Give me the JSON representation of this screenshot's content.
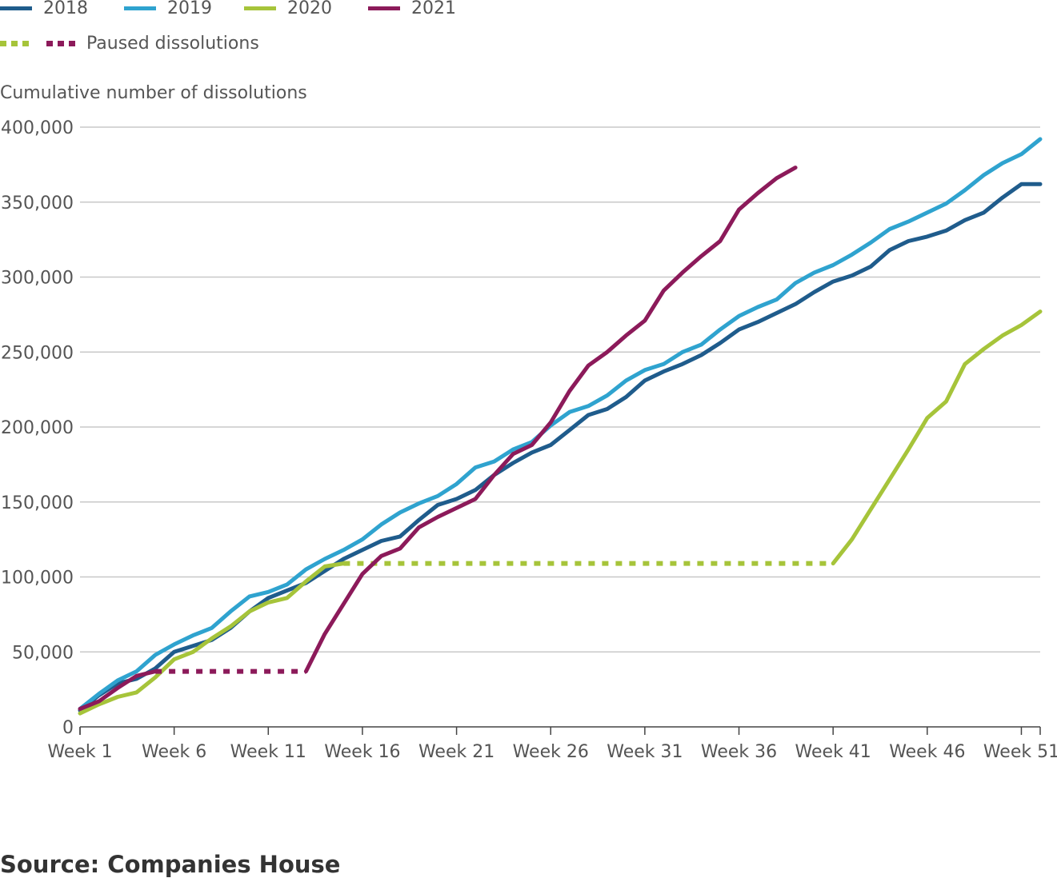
{
  "legend": {
    "series": [
      {
        "label": "2018",
        "color": "#1f5c8c"
      },
      {
        "label": "2019",
        "color": "#2fa3cf"
      },
      {
        "label": "2020",
        "color": "#a6c43a"
      },
      {
        "label": "2021",
        "color": "#8c1a5a"
      }
    ],
    "paused_label": "Paused dissolutions"
  },
  "source": "Source: Companies House",
  "chart_data": {
    "type": "line",
    "ylabel": "Cumulative number of dissolutions",
    "ylim": [
      0,
      400000
    ],
    "yticks": [
      0,
      50000,
      100000,
      150000,
      200000,
      250000,
      300000,
      350000,
      400000
    ],
    "ytick_labels": [
      "0",
      "50,000",
      "100,000",
      "150,000",
      "200,000",
      "250,000",
      "300,000",
      "350,000",
      "400,000"
    ],
    "xlim": [
      1,
      52
    ],
    "xticks": [
      1,
      6,
      11,
      16,
      21,
      26,
      31,
      36,
      41,
      46,
      51
    ],
    "xtick_labels": [
      "Week 1",
      "Week 6",
      "Week 11",
      "Week 16",
      "Week 21",
      "Week 26",
      "Week 31",
      "Week 36",
      "Week 41",
      "Week 46",
      "Week 51"
    ],
    "grid": "horizontal",
    "series": [
      {
        "name": "2018",
        "color": "#1f5c8c",
        "x_start": 1,
        "values": [
          11000,
          21000,
          29000,
          32000,
          39000,
          50000,
          54000,
          58000,
          66000,
          77000,
          86000,
          91000,
          96000,
          104000,
          112000,
          118000,
          124000,
          127000,
          138000,
          148000,
          152000,
          158000,
          168000,
          176000,
          183000,
          188000,
          198000,
          208000,
          212000,
          220000,
          231000,
          237000,
          242000,
          248000,
          256000,
          265000,
          270000,
          276000,
          282000,
          290000,
          297000,
          301000,
          307000,
          318000,
          324000,
          327000,
          331000,
          338000,
          343000,
          353000,
          362000,
          362000
        ]
      },
      {
        "name": "2019",
        "color": "#2fa3cf",
        "x_start": 1,
        "values": [
          12000,
          22000,
          31000,
          37000,
          48000,
          55000,
          61000,
          66000,
          77000,
          87000,
          90000,
          95000,
          105000,
          112000,
          118000,
          125000,
          135000,
          143000,
          149000,
          154000,
          162000,
          173000,
          177000,
          185000,
          190000,
          201000,
          210000,
          214000,
          221000,
          231000,
          238000,
          242000,
          250000,
          255000,
          265000,
          274000,
          280000,
          285000,
          296000,
          303000,
          308000,
          315000,
          323000,
          332000,
          337000,
          343000,
          349000,
          358000,
          368000,
          376000,
          382000,
          392000
        ]
      },
      {
        "name": "2020",
        "color": "#a6c43a",
        "x_start": 1,
        "values": [
          9000,
          15000,
          20000,
          23000,
          33000,
          45000,
          50000,
          59000,
          67000,
          77000,
          83000,
          86000,
          97000,
          107000,
          109000,
          109000,
          109000,
          109000,
          109000,
          109000,
          109000,
          109000,
          109000,
          109000,
          109000,
          109000,
          109000,
          109000,
          109000,
          109000,
          109000,
          109000,
          109000,
          109000,
          109000,
          109000,
          109000,
          109000,
          109000,
          109000,
          109000,
          125000,
          145000,
          165000,
          185000,
          206000,
          217000,
          242000,
          252000,
          261000,
          268000,
          277000
        ],
        "paused_range": [
          15,
          41
        ]
      },
      {
        "name": "2021",
        "color": "#8c1a5a",
        "x_start": 1,
        "values": [
          12000,
          17000,
          26000,
          34000,
          37000,
          37000,
          37000,
          37000,
          37000,
          37000,
          37000,
          37000,
          37000,
          62000,
          82000,
          102000,
          114000,
          119000,
          133000,
          140000,
          146000,
          152000,
          168000,
          182000,
          188000,
          203000,
          224000,
          241000,
          250000,
          261000,
          271000,
          291000,
          303000,
          314000,
          324000,
          345000,
          356000,
          366000,
          373000
        ],
        "paused_range": [
          5,
          13
        ]
      }
    ]
  }
}
